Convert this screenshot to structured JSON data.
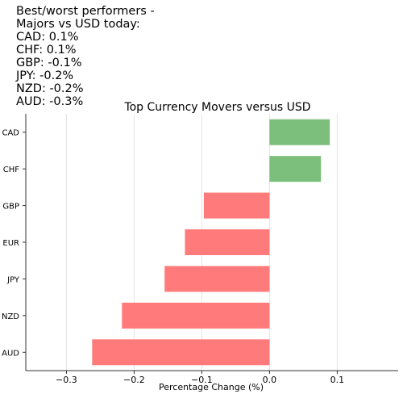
{
  "summary": {
    "lines": [
      "Best/worst performers -",
      "Majors vs USD today:",
      "CAD: 0.1%",
      "CHF: 0.1%",
      "GBP: -0.1%",
      "JPY: -0.2%",
      "NZD: -0.2%",
      "AUD: -0.3%"
    ]
  },
  "chart_data": {
    "type": "bar",
    "orientation": "horizontal",
    "title": "Top Currency Movers versus USD",
    "xlabel": "Percentage Change (%)",
    "ylabel": "",
    "categories": [
      "CAD",
      "CHF",
      "GBP",
      "EUR",
      "JPY",
      "NZD",
      "AUD"
    ],
    "values": [
      0.089,
      0.076,
      -0.097,
      -0.125,
      -0.155,
      -0.218,
      -0.262
    ],
    "xlim": [
      -0.36,
      0.19
    ],
    "xticks": [
      -0.3,
      -0.2,
      -0.1,
      0.0,
      0.1
    ],
    "xtick_labels": [
      "−0.3",
      "−0.2",
      "−0.1",
      "0.0",
      "0.1"
    ],
    "grid": "vertical",
    "colors": {
      "positive": "#7cbf7c",
      "negative": "#ff7b7b",
      "grid": "#e3e3e3",
      "axis": "#333333"
    }
  }
}
